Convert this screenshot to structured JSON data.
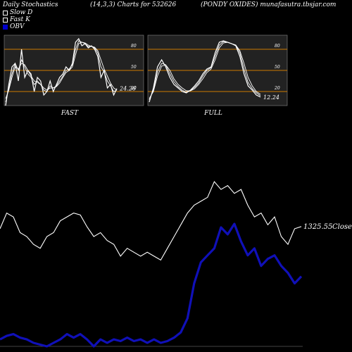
{
  "header": {
    "title": "Daily Stochastics",
    "params": "(14,3,3) Charts for 532626",
    "company": "(PONDY OXIDES) munafasutra.tbsjar.com"
  },
  "legend": [
    {
      "label": "Slow  D",
      "color": "#ffffff",
      "style": "outline"
    },
    {
      "label": "Fast K",
      "color": "#ffffff",
      "style": "outline"
    },
    {
      "label": "OBV",
      "color": "#0000cc",
      "style": "filled"
    }
  ],
  "colors": {
    "background": "#000000",
    "panel_bg": "#222222",
    "ref_line": "#cc7a00",
    "line": "#ffffff",
    "obv": "#1010b8"
  },
  "chart_data": [
    {
      "type": "line",
      "panel": "fast",
      "xlabel": "FAST",
      "ylim": [
        0,
        100
      ],
      "yticks": [
        20,
        50,
        80
      ],
      "last_label": "24.26",
      "series": [
        {
          "values": [
            0,
            30,
            55,
            60,
            35,
            80,
            40,
            50,
            45,
            20,
            40,
            35,
            15,
            20,
            35,
            20,
            30,
            40,
            45,
            55,
            50,
            60,
            90,
            95,
            85,
            88,
            82,
            85,
            80,
            70,
            40,
            50,
            25,
            30,
            15,
            24.26
          ]
        },
        {
          "values": [
            5,
            25,
            45,
            60,
            50,
            65,
            55,
            45,
            40,
            30,
            35,
            30,
            22,
            20,
            28,
            25,
            28,
            35,
            42,
            50,
            52,
            58,
            80,
            92,
            90,
            88,
            84,
            84,
            82,
            75,
            55,
            48,
            35,
            28,
            20,
            22
          ]
        },
        {
          "values": [
            10,
            22,
            40,
            55,
            52,
            60,
            58,
            50,
            42,
            35,
            33,
            30,
            25,
            22,
            25,
            25,
            27,
            32,
            40,
            47,
            50,
            55,
            72,
            88,
            90,
            89,
            86,
            84,
            83,
            78,
            65,
            52,
            42,
            32,
            25,
            22
          ]
        }
      ]
    },
    {
      "type": "line",
      "panel": "full",
      "xlabel": "FULL",
      "ylim": [
        0,
        100
      ],
      "yticks": [
        20,
        50,
        80
      ],
      "last_label": "12.24",
      "series": [
        {
          "values": [
            5,
            25,
            55,
            65,
            55,
            40,
            30,
            25,
            20,
            18,
            22,
            28,
            35,
            45,
            52,
            55,
            75,
            90,
            92,
            90,
            88,
            85,
            70,
            45,
            28,
            22,
            15,
            12.24
          ]
        },
        {
          "values": [
            8,
            22,
            48,
            60,
            58,
            45,
            34,
            27,
            22,
            19,
            21,
            26,
            32,
            42,
            50,
            54,
            70,
            86,
            91,
            90,
            88,
            86,
            75,
            52,
            33,
            24,
            18,
            14
          ]
        },
        {
          "values": [
            10,
            20,
            42,
            56,
            58,
            50,
            38,
            30,
            25,
            21,
            21,
            24,
            30,
            38,
            47,
            52,
            65,
            82,
            89,
            90,
            88,
            86,
            78,
            60,
            40,
            28,
            20,
            16
          ]
        }
      ]
    },
    {
      "type": "line",
      "panel": "main",
      "close_label": "1325.55",
      "close_word": "Close",
      "series": [
        {
          "name": "Close",
          "values": [
            1320,
            1360,
            1350,
            1310,
            1300,
            1280,
            1270,
            1300,
            1310,
            1340,
            1350,
            1360,
            1355,
            1325,
            1300,
            1310,
            1290,
            1280,
            1250,
            1270,
            1260,
            1250,
            1260,
            1250,
            1240,
            1270,
            1300,
            1330,
            1360,
            1380,
            1390,
            1400,
            1440,
            1420,
            1430,
            1410,
            1420,
            1380,
            1350,
            1360,
            1330,
            1350,
            1300,
            1280,
            1320,
            1325.55
          ]
        },
        {
          "name": "OBV",
          "values": [
            12,
            13,
            13.5,
            12.5,
            12,
            11,
            10.5,
            10,
            11,
            12,
            13.5,
            12.5,
            13.5,
            12,
            10,
            12,
            11,
            12,
            11.5,
            12.5,
            11.5,
            12,
            11,
            12,
            11,
            11.5,
            12.5,
            14,
            18,
            28,
            34,
            36,
            38,
            44,
            42,
            45,
            40,
            36,
            38,
            33,
            35,
            36,
            33,
            31,
            28,
            30
          ]
        }
      ]
    }
  ]
}
